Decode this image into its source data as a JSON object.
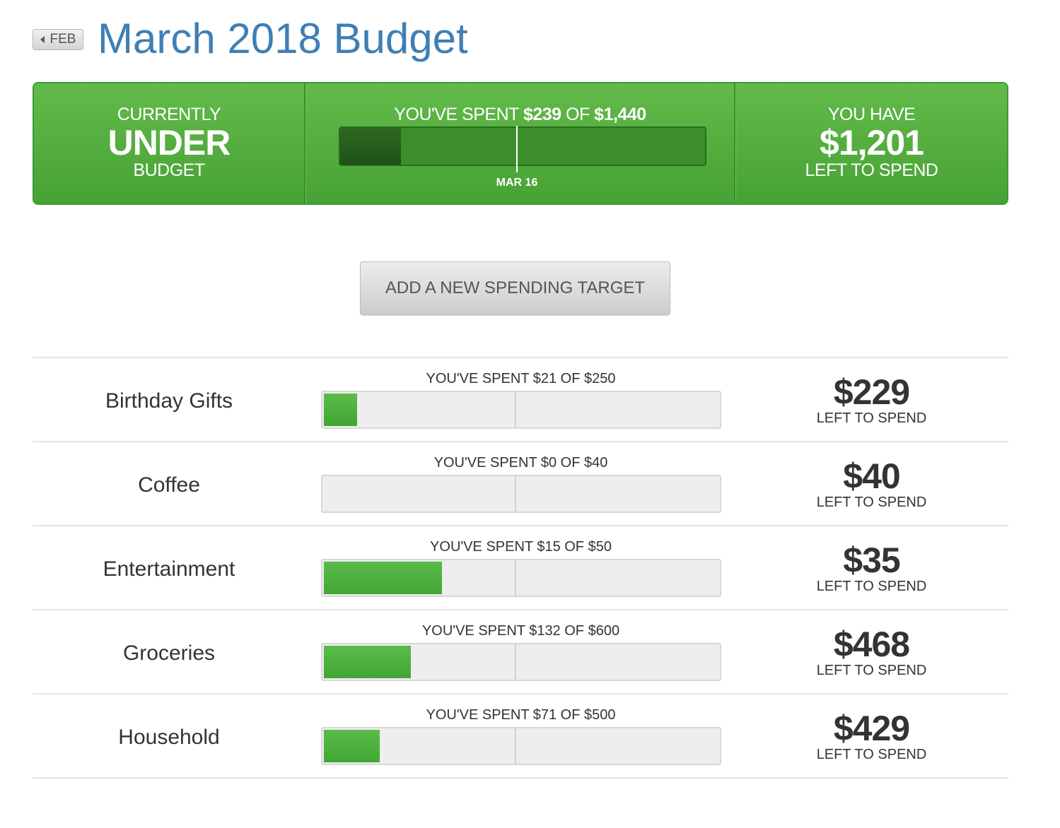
{
  "header": {
    "prev_month_label": "FEB",
    "title": "March 2018 Budget"
  },
  "summary": {
    "status_top": "CURRENTLY",
    "status_main": "UNDER",
    "status_bottom": "BUDGET",
    "spent_prefix": "YOU'VE SPENT ",
    "spent_amount": "$239",
    "spent_of": " OF ",
    "budget_total": "$1,440",
    "spent_fraction": 0.166,
    "date_marker_label": "MAR 16",
    "remaining_top": "YOU HAVE",
    "remaining_amount": "$1,201",
    "remaining_bottom": "LEFT TO SPEND"
  },
  "add_target_label": "ADD A NEW SPENDING TARGET",
  "targets": [
    {
      "name": "Birthday Gifts",
      "spent_text": "YOU'VE SPENT $21 OF $250",
      "fraction": 0.084,
      "left_amount": "$229",
      "left_label": "LEFT TO SPEND"
    },
    {
      "name": "Coffee",
      "spent_text": "YOU'VE SPENT $0 OF $40",
      "fraction": 0.0,
      "left_amount": "$40",
      "left_label": "LEFT TO SPEND"
    },
    {
      "name": "Entertainment",
      "spent_text": "YOU'VE SPENT $15 OF $50",
      "fraction": 0.3,
      "left_amount": "$35",
      "left_label": "LEFT TO SPEND"
    },
    {
      "name": "Groceries",
      "spent_text": "YOU'VE SPENT $132 OF $600",
      "fraction": 0.22,
      "left_amount": "$468",
      "left_label": "LEFT TO SPEND"
    },
    {
      "name": "Household",
      "spent_text": "YOU'VE SPENT $71 OF $500",
      "fraction": 0.142,
      "left_amount": "$429",
      "left_label": "LEFT TO SPEND"
    }
  ]
}
